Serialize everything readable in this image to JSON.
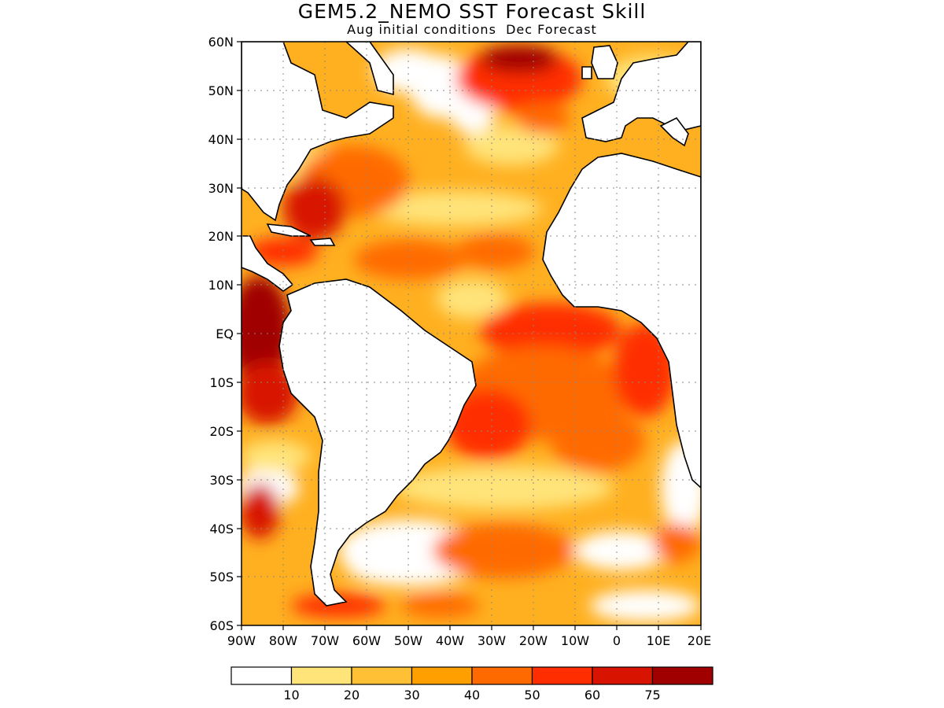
{
  "title": "GEM5.2_NEMO SST Forecast Skill",
  "subtitle": "Aug initial conditions  Dec Forecast",
  "map": {
    "lon_range": [
      -90,
      20
    ],
    "lat_range": [
      -60,
      60
    ],
    "grid": "dotted",
    "lat_labels": [
      "60N",
      "50N",
      "40N",
      "30N",
      "20N",
      "10N",
      "EQ",
      "10S",
      "20S",
      "30S",
      "40S",
      "50S",
      "60S"
    ],
    "lon_labels": [
      "90W",
      "80W",
      "70W",
      "60W",
      "50W",
      "40W",
      "30W",
      "20W",
      "10W",
      "0",
      "10E",
      "20E"
    ]
  },
  "colorbar": {
    "labels": [
      "10",
      "20",
      "30",
      "40",
      "50",
      "60",
      "75"
    ],
    "colors": [
      "#ffffff",
      "#ffe47a",
      "#ffc035",
      "#ffa000",
      "#ff6a00",
      "#ff2d00",
      "#d81400",
      "#a00000"
    ]
  }
}
